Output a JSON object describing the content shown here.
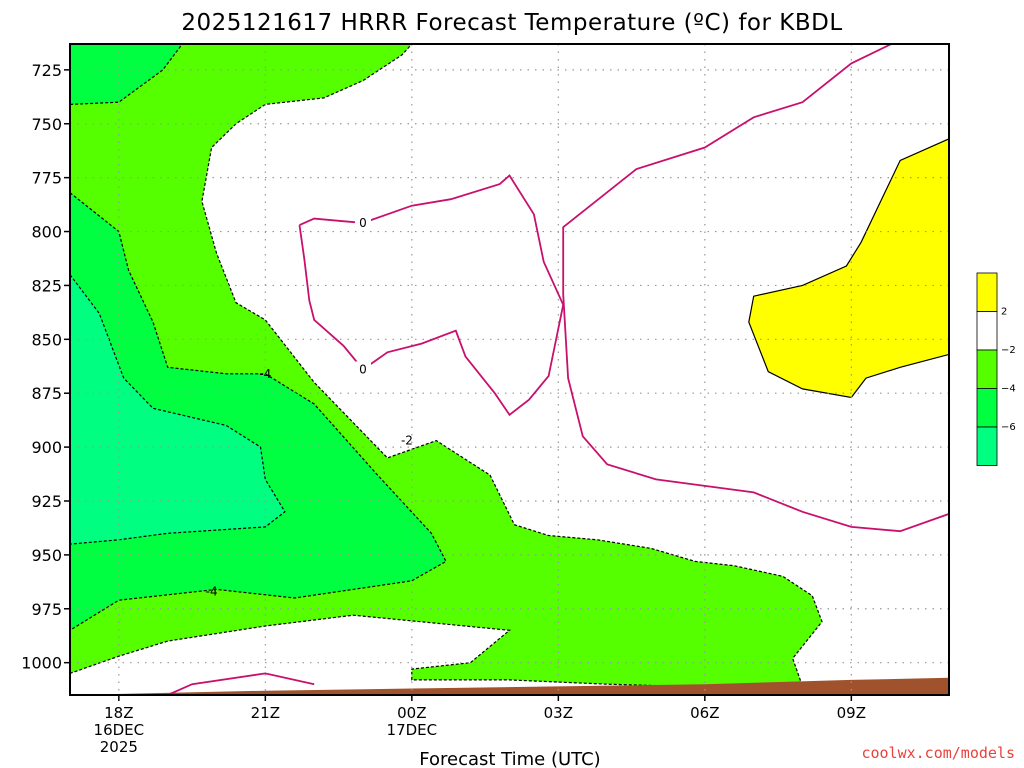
{
  "chart_data": {
    "type": "contour",
    "title": "2025121617 HRRR Forecast Temperature (ºC) for KBDL",
    "xlabel": "Forecast Time (UTC)",
    "ylabel": "",
    "credit": "coolwx.com/models",
    "y_axis": {
      "reversed": true,
      "range": [
        1015,
        713
      ],
      "ticks": [
        725,
        750,
        775,
        800,
        825,
        850,
        875,
        900,
        925,
        950,
        975,
        1000
      ]
    },
    "x_axis": {
      "range_hours": [
        -1,
        17
      ],
      "ticks": [
        {
          "hour": 0,
          "lines": [
            "18Z",
            "16DEC",
            "2025"
          ]
        },
        {
          "hour": 3,
          "lines": [
            "21Z"
          ]
        },
        {
          "hour": 6,
          "lines": [
            "00Z",
            "17DEC"
          ]
        },
        {
          "hour": 9,
          "lines": [
            "03Z"
          ]
        },
        {
          "hour": 12,
          "lines": [
            "06Z"
          ]
        },
        {
          "hour": 15,
          "lines": [
            "09Z"
          ]
        }
      ]
    },
    "grid": true,
    "colorbar": {
      "placement": "right",
      "bins": [
        {
          "color": "#ffff00",
          "label": "2"
        },
        {
          "color": "#ffffff",
          "label": "−2"
        },
        {
          "color": "#55ff00",
          "label": "−4"
        },
        {
          "color": "#00ff40",
          "label": "−6"
        },
        {
          "color": "#00ff80",
          "label": ""
        }
      ]
    },
    "colors": {
      "bright_green": "#55ff00",
      "green": "#00ff40",
      "aqua_green": "#00ff80",
      "yellow": "#ffff00",
      "ground": "#a0522d",
      "zero_line": "#c8106e"
    },
    "regions": [
      {
        "name": "minus2_to_minus4",
        "fill": "#55ff00",
        "points": [
          [
            -1,
            713
          ],
          [
            6,
            713
          ],
          [
            5.8,
            718
          ],
          [
            5,
            730
          ],
          [
            4.2,
            738
          ],
          [
            3,
            741
          ],
          [
            2.4,
            750
          ],
          [
            1.9,
            761
          ],
          [
            1.7,
            786
          ],
          [
            2,
            810
          ],
          [
            2.4,
            833
          ],
          [
            3,
            841
          ],
          [
            4,
            870
          ],
          [
            5.5,
            905
          ],
          [
            6.5,
            897
          ],
          [
            7.6,
            913
          ],
          [
            8.1,
            936
          ],
          [
            8.8,
            941
          ],
          [
            9.8,
            943
          ],
          [
            10.9,
            947
          ],
          [
            11.8,
            953
          ],
          [
            12.6,
            955
          ],
          [
            13.6,
            960
          ],
          [
            14.2,
            969
          ],
          [
            14.4,
            981
          ],
          [
            13.8,
            998
          ],
          [
            14,
            1011
          ],
          [
            13.2,
            1012
          ],
          [
            10,
            1010
          ],
          [
            8,
            1008
          ],
          [
            6,
            1008
          ],
          [
            6,
            1003
          ],
          [
            7.2,
            1000
          ],
          [
            8,
            985
          ],
          [
            4.8,
            978
          ],
          [
            3,
            983
          ],
          [
            1,
            990
          ],
          [
            0,
            997
          ],
          [
            -1,
            1005
          ]
        ]
      },
      {
        "name": "minus4_to_minus6",
        "fill": "#00ff40",
        "points": [
          [
            -1,
            713
          ],
          [
            1.3,
            713
          ],
          [
            0.9,
            725
          ],
          [
            0,
            740
          ],
          [
            -1,
            741
          ]
        ]
      },
      {
        "name": "minus4_to_minus6",
        "fill": "#00ff40",
        "points": [
          [
            -1,
            782
          ],
          [
            0,
            800
          ],
          [
            0.2,
            818
          ],
          [
            0.7,
            842
          ],
          [
            1,
            863
          ],
          [
            2.2,
            866
          ],
          [
            3,
            866
          ],
          [
            4,
            880
          ],
          [
            5.3,
            913
          ],
          [
            6.4,
            940
          ],
          [
            6.7,
            953
          ],
          [
            6,
            962
          ],
          [
            3.6,
            970
          ],
          [
            2,
            966
          ],
          [
            0,
            971
          ],
          [
            -1,
            985
          ]
        ]
      },
      {
        "name": "below_minus6",
        "fill": "#00ff80",
        "points": [
          [
            -1,
            820
          ],
          [
            -0.4,
            838
          ],
          [
            0.1,
            868
          ],
          [
            0.7,
            882
          ],
          [
            2.2,
            890
          ],
          [
            2.9,
            900
          ],
          [
            3,
            915
          ],
          [
            3.4,
            930
          ],
          [
            3,
            937
          ],
          [
            1,
            940
          ],
          [
            0,
            943
          ],
          [
            -1,
            945
          ]
        ]
      },
      {
        "name": "above_2",
        "fill": "#ffff00",
        "points": [
          [
            17,
            757
          ],
          [
            16,
            767
          ],
          [
            15.2,
            805
          ],
          [
            14.9,
            816
          ],
          [
            14,
            825
          ],
          [
            13,
            830
          ],
          [
            12.9,
            842
          ],
          [
            13.3,
            865
          ],
          [
            14,
            873
          ],
          [
            15,
            877
          ],
          [
            15.3,
            868
          ],
          [
            16,
            863
          ],
          [
            17,
            857
          ]
        ]
      }
    ],
    "contours": [
      {
        "level": 0,
        "labels": [
          {
            "text": "0",
            "at": [
              5.0,
              796
            ]
          },
          {
            "text": "0",
            "at": [
              5.0,
              864
            ]
          }
        ],
        "paths": [
          [
            [
              3.7,
              797
            ],
            [
              4,
              794
            ],
            [
              4.5,
              795
            ],
            [
              5,
              796
            ],
            [
              6,
              788
            ],
            [
              6.8,
              785
            ],
            [
              7.8,
              778
            ],
            [
              8,
              774
            ],
            [
              8.5,
              792
            ],
            [
              8.7,
              814
            ],
            [
              9.1,
              834
            ],
            [
              8.8,
              867
            ],
            [
              8.4,
              878
            ],
            [
              8,
              885
            ],
            [
              7.7,
              875
            ],
            [
              7.1,
              858
            ],
            [
              6.9,
              846
            ],
            [
              6.2,
              852
            ],
            [
              5.5,
              856
            ],
            [
              5,
              864
            ],
            [
              4.6,
              853
            ],
            [
              4,
              841
            ],
            [
              3.9,
              832
            ],
            [
              3.8,
              813
            ],
            [
              3.7,
              797
            ]
          ],
          [
            [
              17,
              713
            ],
            [
              16,
              711
            ],
            [
              15,
              722
            ],
            [
              14,
              740
            ],
            [
              13,
              747
            ],
            [
              12,
              761
            ],
            [
              10.6,
              771
            ],
            [
              9.6,
              789
            ],
            [
              9.1,
              798
            ],
            [
              9.1,
              829
            ],
            [
              9.2,
              868
            ],
            [
              9.5,
              895
            ],
            [
              10,
              908
            ],
            [
              11,
              915
            ],
            [
              12,
              918
            ],
            [
              13,
              921
            ],
            [
              14,
              930
            ],
            [
              15,
              937
            ],
            [
              16,
              939
            ],
            [
              17,
              931
            ]
          ],
          [
            [
              1,
              1015
            ],
            [
              1.5,
              1010
            ],
            [
              3,
              1005
            ],
            [
              4,
              1010
            ]
          ]
        ]
      },
      {
        "level": -2,
        "labels": [
          {
            "text": "-2",
            "at": [
              5.9,
              897
            ]
          }
        ],
        "style": "dashed"
      },
      {
        "level": -4,
        "labels": [
          {
            "text": "-4",
            "at": [
              3.0,
              866
            ]
          },
          {
            "text": "-4",
            "at": [
              1.9,
              967
            ]
          }
        ],
        "style": "dashed"
      }
    ],
    "ground": {
      "fill": "#a0522d",
      "points": [
        [
          -1,
          1015
        ],
        [
          3,
          1013
        ],
        [
          6,
          1012
        ],
        [
          9,
          1011
        ],
        [
          12,
          1010
        ],
        [
          15,
          1008
        ],
        [
          17,
          1007
        ],
        [
          17,
          1030
        ],
        [
          -1,
          1030
        ]
      ]
    }
  }
}
